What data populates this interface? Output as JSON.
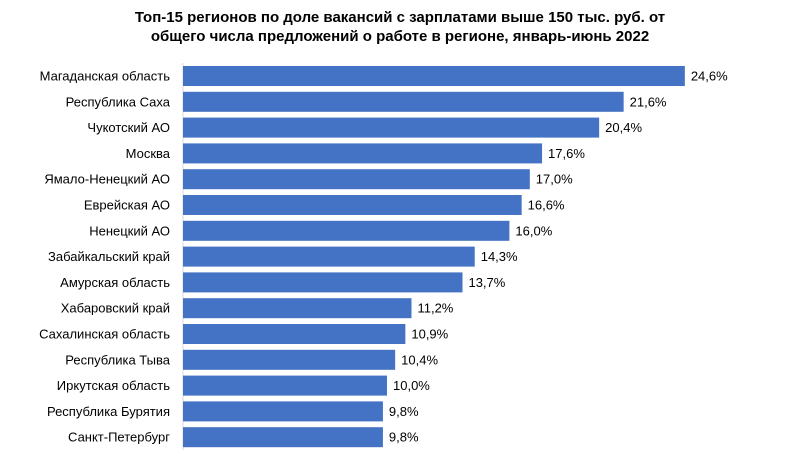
{
  "chart_data": {
    "type": "bar",
    "orientation": "horizontal",
    "title_lines": [
      "Топ-15 регионов по доле вакансий с зарплатами выше 150 тыс. руб. от",
      "общего числа предложений о работе в регионе, январь-июнь 2022"
    ],
    "categories": [
      "Магаданская область",
      "Республика Саха",
      "Чукотский АО",
      "Москва",
      "Ямало-Ненецкий АО",
      "Еврейская АО",
      "Ненецкий АО",
      "Забайкальский край",
      "Амурская область",
      "Хабаровский край",
      "Сахалинская область",
      "Республика Тыва",
      "Иркутская область",
      "Республика Бурятия",
      "Санкт-Петербург"
    ],
    "values": [
      24.6,
      21.6,
      20.4,
      17.6,
      17.0,
      16.6,
      16.0,
      14.3,
      13.7,
      11.2,
      10.9,
      10.4,
      10.0,
      9.8,
      9.8
    ],
    "labels": [
      "24,6%",
      "21,6%",
      "20,4%",
      "17,6%",
      "17,0%",
      "16,6%",
      "16,0%",
      "14,3%",
      "13,7%",
      "11,2%",
      "10,9%",
      "10,4%",
      "10,0%",
      "9,8%",
      "9,8%"
    ],
    "bar_color": "#4472C4",
    "grid": false,
    "legend": false
  }
}
